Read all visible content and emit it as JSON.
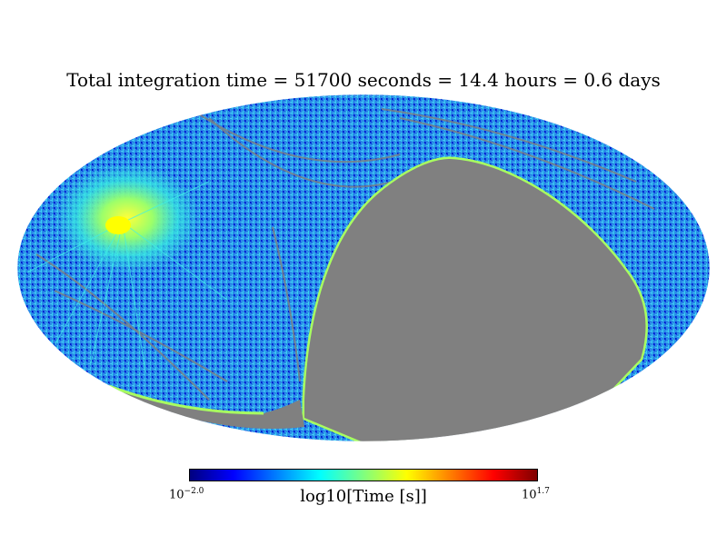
{
  "title": "Total integration time = 51700 seconds = 14.4 hours = 0.6 days",
  "colorbar": {
    "label": "log10[Time [s]]",
    "min_base": "10",
    "min_exp": "−2.0",
    "max_base": "10",
    "max_exp": "1.7",
    "colormap": "jet",
    "stops": [
      "#00007f",
      "#0000ff",
      "#007fff",
      "#00ffff",
      "#7fff7f",
      "#ffff00",
      "#ff7f00",
      "#ff0000",
      "#7f0000"
    ]
  },
  "map": {
    "projection": "mollweide",
    "unseen_color": "#808080",
    "base_color": "#1e88e8"
  }
}
